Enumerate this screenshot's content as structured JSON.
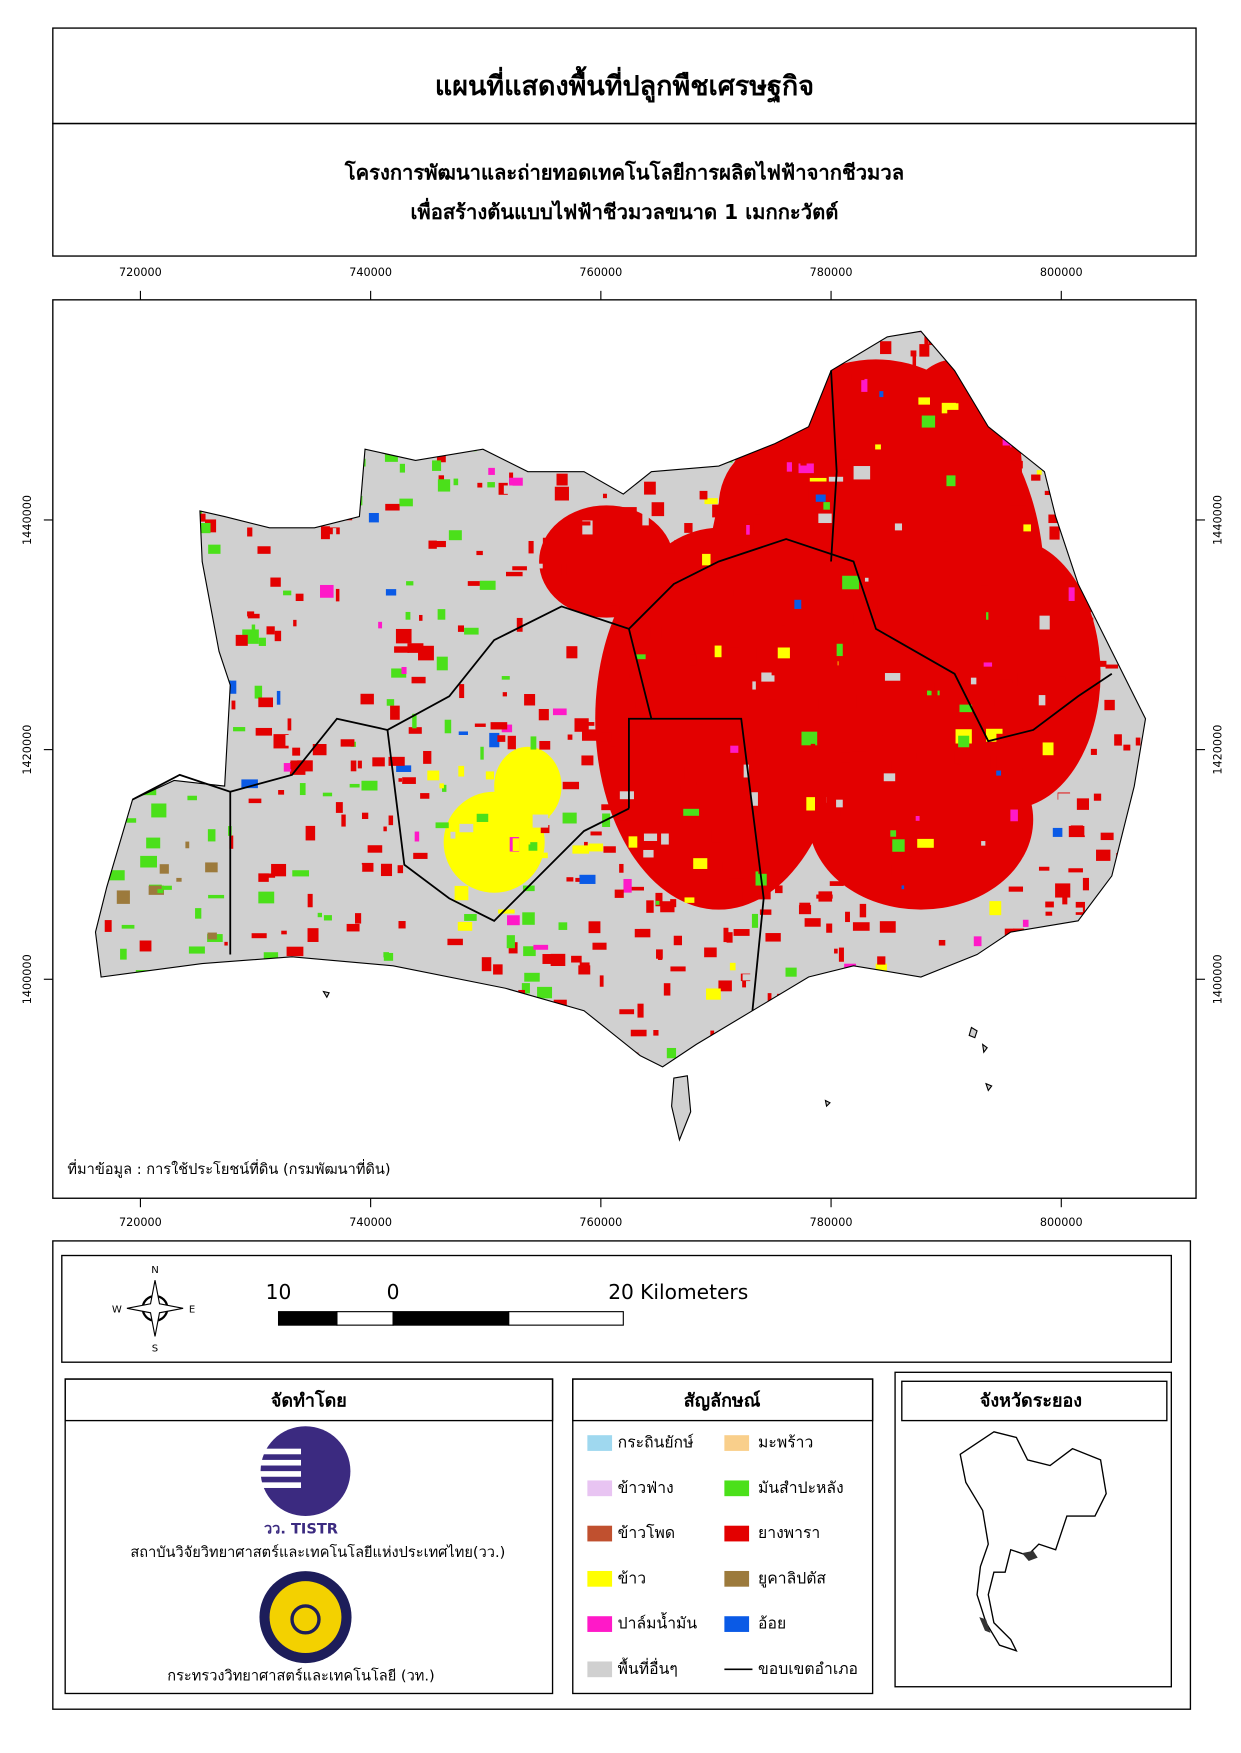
{
  "header": {
    "title": "แผนที่แสดงพื้นที่ปลูกพืชเศรษฐกิจ",
    "subtitle": [
      "โครงการพัฒนาและถ่ายทอดเทคโนโลยีการผลิตไฟฟ้าจากชีวมวล",
      "เพื่อสร้างต้นแบบไฟฟ้าชีวมวลขนาด 1 เมกกะวัตต์"
    ]
  },
  "map": {
    "xlim": [
      712390,
      811707
    ],
    "ylim": [
      1380930,
      1459170
    ],
    "xticks": [
      720000,
      740000,
      760000,
      780000,
      800000
    ],
    "yticks": [
      1400000,
      1420000,
      1440000
    ],
    "source": "ที่มาข้อมูล : การใช้ประโยชน์ที่ดิน  (กรมพัฒนาที่ดิน)"
  },
  "north_arrow": {
    "n": "N",
    "e": "E",
    "s": "S",
    "w": "W"
  },
  "scale_bar": {
    "labels": [
      10,
      0,
      20
    ],
    "unit": "Kilometers"
  },
  "credits": {
    "title": "จัดทำโดย",
    "logo_text": "วว. TISTR",
    "org1": "สถาบันวิจัยวิทยาศาสตร์และเทคโนโลยีแห่งประเทศไทย(วว.)",
    "org2": "กระทรวงวิทยาศาสตร์และเทคโนโลยี (วท.)"
  },
  "legend": {
    "title": "สัญลักษณ์",
    "items": [
      {
        "label": "กระถินยักษ์",
        "color": "#9fd8ef"
      },
      {
        "label": "มะพร้าว",
        "color": "#f9cf8b"
      },
      {
        "label": "ข้าวฟ่าง",
        "color": "#e8c4f2"
      },
      {
        "label": "มันสำปะหลัง",
        "color": "#4be01a"
      },
      {
        "label": "ข้าวโพด",
        "color": "#c0502f"
      },
      {
        "label": "ยางพารา",
        "color": "#e30000"
      },
      {
        "label": "ข้าว",
        "color": "#ffff00"
      },
      {
        "label": "ยูคาลิปตัส",
        "color": "#9c7a3c"
      },
      {
        "label": "ปาล์มน้ำมัน",
        "color": "#ff19c8"
      },
      {
        "label": "อ้อย",
        "color": "#0a5ae6"
      },
      {
        "label": "พื้นที่อื่นๆ",
        "color": "#d0d0d0"
      },
      {
        "label": "ขอบเขตอำเภอ",
        "color": "#000000",
        "symbol": "line"
      }
    ]
  },
  "inset": {
    "title": "จังหวัดระยอง"
  }
}
